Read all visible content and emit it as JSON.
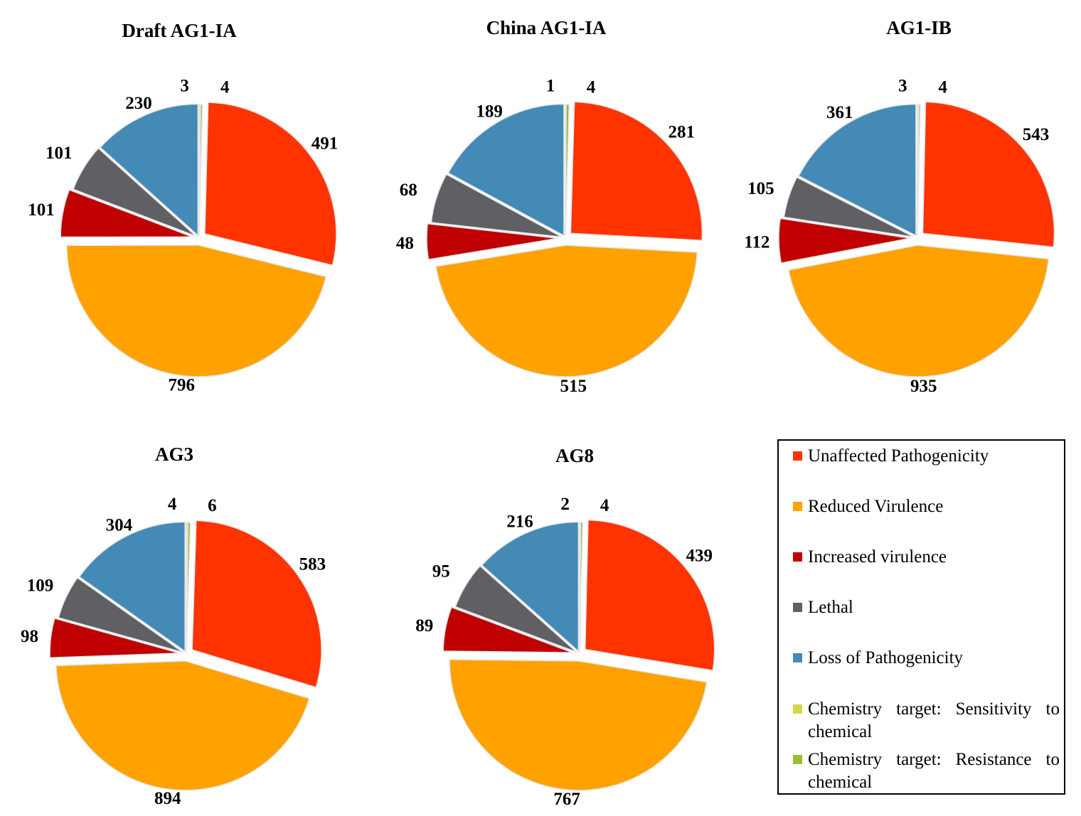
{
  "chart_data": [
    {
      "type": "pie",
      "title": "Draft AG1-IA",
      "categories": [
        "Unaffected Pathogenicity",
        "Reduced Virulence",
        "Increased virulence",
        "Lethal",
        "Loss of Pathogenicity",
        "Chemistry target: Sensitivity to chemical",
        "Chemistry target: Resistance to chemical"
      ],
      "values": [
        491,
        796,
        101,
        101,
        230,
        3,
        4
      ]
    },
    {
      "type": "pie",
      "title": "China AG1-IA",
      "categories": [
        "Unaffected Pathogenicity",
        "Reduced Virulence",
        "Increased virulence",
        "Lethal",
        "Loss of Pathogenicity",
        "Chemistry target: Sensitivity to chemical",
        "Chemistry target: Resistance to chemical"
      ],
      "values": [
        281,
        515,
        48,
        68,
        189,
        1,
        4
      ]
    },
    {
      "type": "pie",
      "title": "AG1-IB",
      "categories": [
        "Unaffected Pathogenicity",
        "Reduced Virulence",
        "Increased virulence",
        "Lethal",
        "Loss of Pathogenicity",
        "Chemistry target: Sensitivity to chemical",
        "Chemistry target: Resistance to chemical"
      ],
      "values": [
        543,
        935,
        112,
        105,
        361,
        3,
        4
      ]
    },
    {
      "type": "pie",
      "title": "AG3",
      "categories": [
        "Unaffected Pathogenicity",
        "Reduced Virulence",
        "Increased virulence",
        "Lethal",
        "Loss of Pathogenicity",
        "Chemistry target: Sensitivity to chemical",
        "Chemistry target: Resistance to chemical"
      ],
      "values": [
        583,
        894,
        98,
        109,
        304,
        4,
        6
      ]
    },
    {
      "type": "pie",
      "title": "AG8",
      "categories": [
        "Unaffected Pathogenicity",
        "Reduced Virulence",
        "Increased virulence",
        "Lethal",
        "Loss of Pathogenicity",
        "Chemistry target: Sensitivity to chemical",
        "Chemistry target: Resistance to chemical"
      ],
      "values": [
        439,
        767,
        89,
        95,
        216,
        2,
        4
      ]
    }
  ],
  "legend": {
    "items": [
      {
        "label": "Unaffected Pathogenicity",
        "color": "#ff3300"
      },
      {
        "label": "Reduced Virulence",
        "color": "#ffa200"
      },
      {
        "label": "Increased virulence",
        "color": "#c00000"
      },
      {
        "label": "Lethal",
        "color": "#5f5f64"
      },
      {
        "label": "Loss of Pathogenicity",
        "color": "#438ab7"
      },
      {
        "label": "Chemistry target: Sensitivity to chemical",
        "color": "#d6d64b"
      },
      {
        "label": "Chemistry target: Resistance to chemical",
        "color": "#9bbb36"
      }
    ]
  }
}
